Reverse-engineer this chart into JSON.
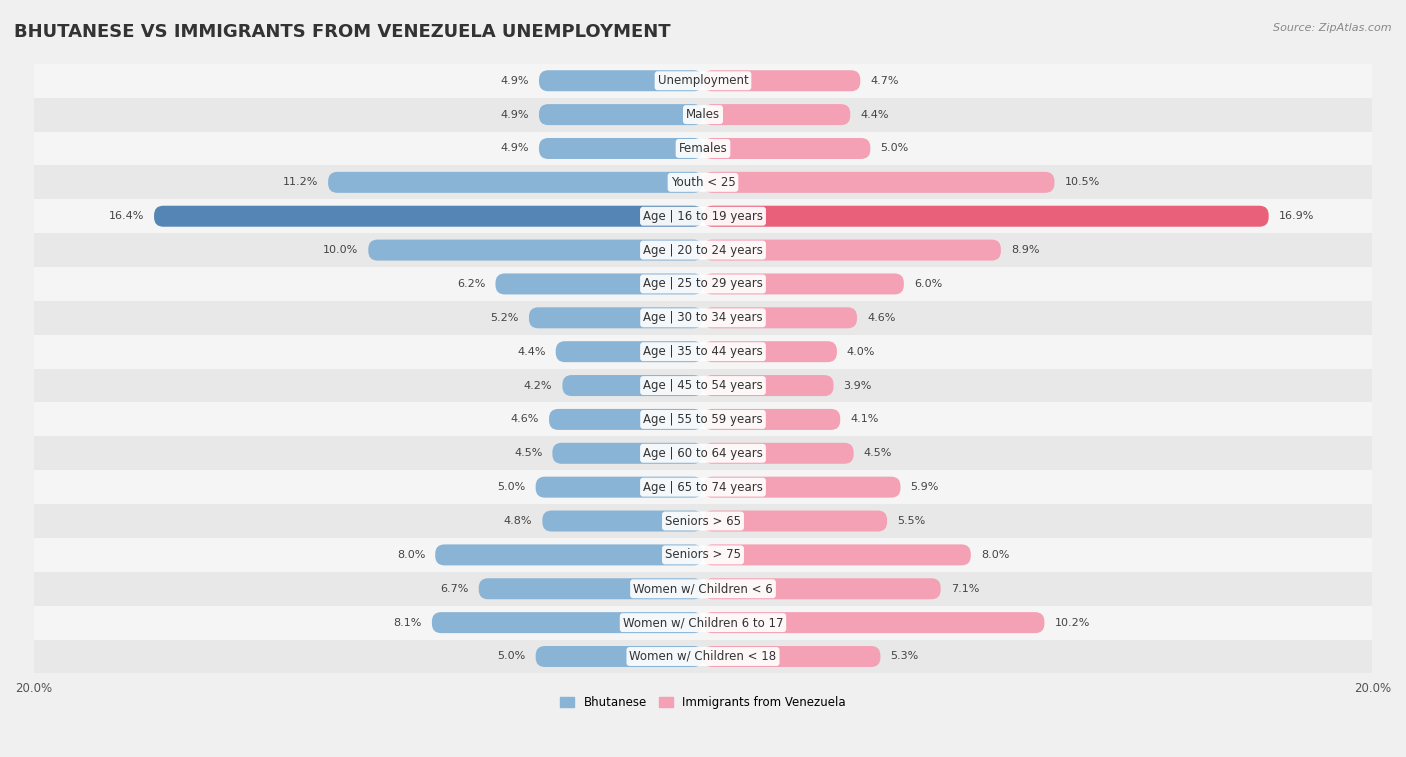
{
  "title": "BHUTANESE VS IMMIGRANTS FROM VENEZUELA UNEMPLOYMENT",
  "source": "Source: ZipAtlas.com",
  "categories": [
    "Unemployment",
    "Males",
    "Females",
    "Youth < 25",
    "Age | 16 to 19 years",
    "Age | 20 to 24 years",
    "Age | 25 to 29 years",
    "Age | 30 to 34 years",
    "Age | 35 to 44 years",
    "Age | 45 to 54 years",
    "Age | 55 to 59 years",
    "Age | 60 to 64 years",
    "Age | 65 to 74 years",
    "Seniors > 65",
    "Seniors > 75",
    "Women w/ Children < 6",
    "Women w/ Children 6 to 17",
    "Women w/ Children < 18"
  ],
  "bhutanese": [
    4.9,
    4.9,
    4.9,
    11.2,
    16.4,
    10.0,
    6.2,
    5.2,
    4.4,
    4.2,
    4.6,
    4.5,
    5.0,
    4.8,
    8.0,
    6.7,
    8.1,
    5.0
  ],
  "venezuela": [
    4.7,
    4.4,
    5.0,
    10.5,
    16.9,
    8.9,
    6.0,
    4.6,
    4.0,
    3.9,
    4.1,
    4.5,
    5.9,
    5.5,
    8.0,
    7.1,
    10.2,
    5.3
  ],
  "bhutanese_color": "#8ab4d5",
  "venezuela_color": "#f4a0b5",
  "highlight_bhutanese_color": "#5585b5",
  "highlight_venezuela_color": "#e8607a",
  "axis_max": 20.0,
  "background_color": "#f0f0f0",
  "row_colors": [
    "#f5f5f5",
    "#e8e8e8"
  ],
  "bar_height": 0.62,
  "title_fontsize": 13,
  "label_fontsize": 8.5,
  "value_fontsize": 8.0,
  "legend_fontsize": 8.5,
  "source_fontsize": 8
}
